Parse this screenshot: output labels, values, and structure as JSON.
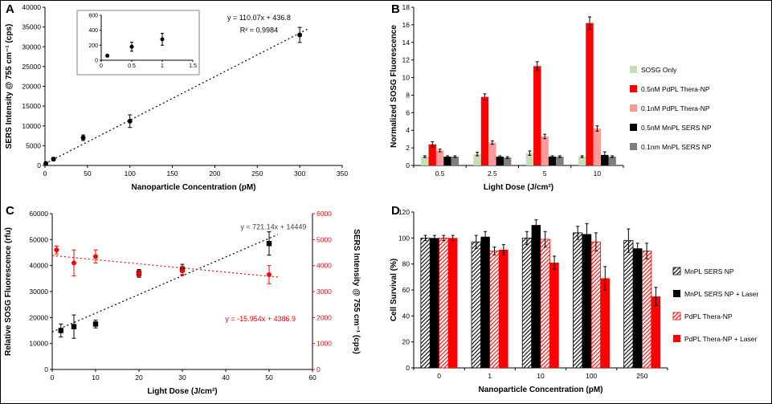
{
  "figure": {
    "background": "#ffffff"
  },
  "chart_data": [
    {
      "panel_label": "A",
      "type": "scatter",
      "xlabel": "Nanoparticle Concentration (pM)",
      "ylabel": "SERS Intensity @ 755 cm⁻¹ (cps)",
      "xlim": [
        0,
        350
      ],
      "ylim": [
        0,
        40000
      ],
      "xticks": [
        0,
        50,
        100,
        150,
        200,
        250,
        300,
        350
      ],
      "yticks": [
        0,
        5000,
        10000,
        15000,
        20000,
        25000,
        30000,
        35000,
        40000
      ],
      "annotations": [
        {
          "text": "y = 110.07x + 436.8",
          "x": 0.72,
          "y": 0.08,
          "color": "#000000"
        },
        {
          "text": "R² = 0.9984",
          "x": 0.72,
          "y": 0.16,
          "color": "#000000"
        }
      ],
      "series": [
        {
          "name": "SERS intensity vs nanoparticle concentration",
          "marker": "circle",
          "color": "#000000",
          "x": [
            1,
            10,
            45,
            100,
            300
          ],
          "y": [
            500,
            1600,
            7000,
            11200,
            33000
          ],
          "yerr": [
            300,
            400,
            700,
            1600,
            1900
          ],
          "fit": {
            "slope": 110.07,
            "intercept": 436.8,
            "x0": 0,
            "x1": 310
          }
        }
      ],
      "inset": {
        "xlim": [
          0,
          1.5
        ],
        "ylim": [
          0,
          600
        ],
        "xticks": [
          0,
          0.5,
          1,
          1.5
        ],
        "yticks": [
          0,
          200,
          400,
          600
        ],
        "series": [
          {
            "marker": "circle",
            "color": "#000000",
            "x": [
              0.1,
              0.5,
              1
            ],
            "y": [
              60,
              180,
              280
            ],
            "yerr": [
              15,
              60,
              80
            ]
          }
        ]
      }
    },
    {
      "panel_label": "B",
      "type": "bar",
      "xlabel": "Light Dose (J/cm²)",
      "ylabel": "Normalized SOSG Fluorescence",
      "ylim": [
        0,
        18
      ],
      "yticks": [
        0,
        2,
        4,
        6,
        8,
        10,
        12,
        14,
        16,
        18
      ],
      "categories": [
        "0.5",
        "2.5",
        "5",
        "10"
      ],
      "legend_position": "right",
      "series": [
        {
          "name": "SOSG Only",
          "color": "#c6e0b4",
          "hatch": false,
          "values": [
            1.0,
            1.3,
            1.4,
            1.0
          ],
          "yerr": [
            0.1,
            0.2,
            0.25,
            0.1
          ]
        },
        {
          "name": "0.5nM PdPL Thera-NP",
          "color": "#ff0000",
          "hatch": false,
          "values": [
            2.4,
            7.8,
            11.3,
            16.2
          ],
          "yerr": [
            0.3,
            0.35,
            0.5,
            0.7
          ]
        },
        {
          "name": "0.1nM PdPL Thera-NP",
          "color": "#ff9999",
          "hatch": false,
          "values": [
            1.7,
            2.6,
            3.3,
            4.2
          ],
          "yerr": [
            0.15,
            0.2,
            0.25,
            0.3
          ]
        },
        {
          "name": "0.5nM MnPL SERS NP",
          "color": "#000000",
          "hatch": false,
          "values": [
            1.0,
            1.0,
            1.0,
            1.2
          ],
          "yerr": [
            0.1,
            0.1,
            0.1,
            0.35
          ]
        },
        {
          "name": "0.1nm MnPL SERS NP",
          "color": "#7f7f7f",
          "hatch": false,
          "values": [
            1.0,
            0.9,
            1.0,
            1.0
          ],
          "yerr": [
            0.1,
            0.1,
            0.1,
            0.1
          ]
        }
      ]
    },
    {
      "panel_label": "C",
      "type": "scatter",
      "xlabel": "Light Dose (J/cm²)",
      "ylabel_left": "Relative SOSG Fluorescence (rfu)",
      "ylabel_right": "SERS Intensity @ 755 cm⁻¹ (cps)",
      "xlim": [
        0,
        60
      ],
      "ylim_left": [
        0,
        60000
      ],
      "ylim_right": [
        0,
        6000
      ],
      "xticks": [
        0,
        10,
        20,
        30,
        40,
        50,
        60
      ],
      "yticks_left": [
        0,
        10000,
        20000,
        30000,
        40000,
        50000,
        60000
      ],
      "yticks_right": [
        0,
        1000,
        2000,
        3000,
        4000,
        5000,
        6000
      ],
      "right_axis_color": "#ff0000",
      "annotations": [
        {
          "text": "y = 721.14x + 14449",
          "x": 0.85,
          "y": 0.1,
          "color": "#404040"
        },
        {
          "text": "y = -15.954x + 4386.9",
          "x": 0.8,
          "y": 0.69,
          "color": "#ff0000"
        }
      ],
      "series": [
        {
          "name": "Relative SOSG Fluorescence",
          "axis": "left",
          "marker": "square",
          "color": "#000000",
          "x": [
            2,
            5,
            10,
            20,
            30,
            50
          ],
          "y": [
            15000,
            16500,
            17500,
            37000,
            38500,
            48500
          ],
          "yerr": [
            2500,
            4500,
            1500,
            1500,
            2000,
            4500
          ],
          "fit": {
            "slope": 721.14,
            "intercept": 14449,
            "x0": 0,
            "x1": 52
          }
        },
        {
          "name": "SERS Intensity",
          "axis": "right",
          "marker": "circle",
          "color": "#ff0000",
          "x": [
            1,
            5,
            10,
            20,
            30,
            50
          ],
          "y": [
            4600,
            4100,
            4350,
            3700,
            3800,
            3650
          ],
          "yerr": [
            150,
            500,
            250,
            120,
            180,
            350
          ],
          "fit": {
            "slope": -15.954,
            "intercept": 4386.9,
            "x0": 0,
            "x1": 52
          }
        }
      ]
    },
    {
      "panel_label": "D",
      "type": "bar",
      "xlabel": "Nanoparticle Concentration (pM)",
      "ylabel": "Cell Survival (%)",
      "ylim": [
        0,
        120
      ],
      "yticks": [
        0,
        20,
        40,
        60,
        80,
        100,
        120
      ],
      "categories": [
        "0",
        "1",
        "10",
        "100",
        "250"
      ],
      "legend_position": "right",
      "series": [
        {
          "name": "MnPL SERS NP",
          "color": "#000000",
          "hatch": true,
          "values": [
            100,
            97,
            100,
            104,
            98
          ],
          "yerr": [
            2,
            5,
            5,
            5,
            9
          ]
        },
        {
          "name": "MnPL SERS NP + Laser",
          "color": "#000000",
          "hatch": false,
          "values": [
            100,
            101,
            110,
            103,
            92
          ],
          "yerr": [
            2,
            4,
            4,
            8,
            4
          ]
        },
        {
          "name": "PdPL Thera-NP",
          "color": "#ff0000",
          "hatch": true,
          "values": [
            100,
            90,
            99,
            97,
            90
          ],
          "yerr": [
            2,
            3,
            6,
            7,
            6
          ]
        },
        {
          "name": "PdPL Thera-NP + Laser",
          "color": "#ff0000",
          "hatch": false,
          "values": [
            100,
            91,
            81,
            69,
            55
          ],
          "yerr": [
            2,
            4,
            5,
            9,
            7
          ]
        }
      ]
    }
  ]
}
